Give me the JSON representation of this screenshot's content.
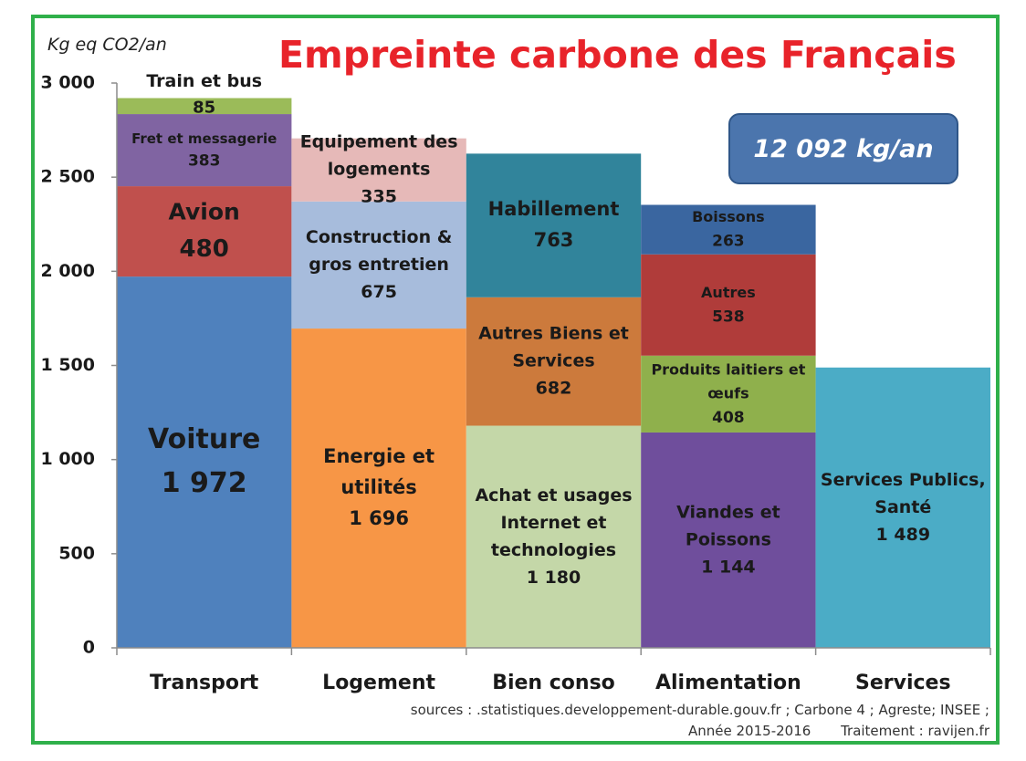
{
  "title": "Empreinte carbone des Français",
  "unit_label": "Kg eq CO2/an",
  "total": "12 092 kg/an",
  "sources": {
    "line1": "sources : .statistiques.developpement-durable.gouv.fr ; Carbone 4 ; Agreste;  INSEE ;",
    "year": "Année 2015-2016",
    "treatment": "Traitement : ravijen.fr"
  },
  "colors": {
    "frame": "#2fb04a",
    "title": "#e8232a",
    "total_box": "#4b75ad"
  },
  "chart_data": {
    "type": "bar",
    "stacked": true,
    "ylabel": "Kg eq CO2/an",
    "ylim": [
      0,
      3000
    ],
    "yticks": [
      0,
      500,
      1000,
      1500,
      2000,
      2500,
      3000
    ],
    "ytick_labels": [
      "0",
      "500",
      "1 000",
      "1 500",
      "2 000",
      "2 500",
      "3 000"
    ],
    "grid": false,
    "categories": [
      "Transport",
      "Logement",
      "Bien conso",
      "Alimentation",
      "Services"
    ],
    "stacks": [
      {
        "category": "Transport",
        "segments": [
          {
            "label": [
              "Voiture"
            ],
            "value": 1972,
            "value_label": "1 972",
            "color": "#4f81bd",
            "label_size": 30,
            "value_size": 30
          },
          {
            "label": [
              "Avion"
            ],
            "value": 480,
            "value_label": "480",
            "color": "#c0504d",
            "label_size": 25,
            "value_size": 26
          },
          {
            "label": [
              "Fret et messagerie"
            ],
            "value": 383,
            "value_label": "383",
            "color": "#8064a2",
            "label_size": 15,
            "value_size": 17
          },
          {
            "label": [
              "Train et bus"
            ],
            "value": 85,
            "value_label": "85",
            "color": "#9bbb59",
            "label_size": 19,
            "value_size": 18,
            "label_above": true
          }
        ]
      },
      {
        "category": "Logement",
        "segments": [
          {
            "label": [
              "Energie et",
              "utilités"
            ],
            "value": 1696,
            "value_label": "1 696",
            "color": "#f79646",
            "label_size": 21,
            "value_size": 21
          },
          {
            "label": [
              "Construction &",
              "gros entretien"
            ],
            "value": 675,
            "value_label": "675",
            "color": "#a7bcdc",
            "label_size": 19,
            "value_size": 19
          },
          {
            "label": [
              "Equipement des",
              "logements"
            ],
            "value": 335,
            "value_label": "335",
            "color": "#e6b9b8",
            "label_size": 19,
            "value_size": 19
          }
        ]
      },
      {
        "category": "Bien conso",
        "segments": [
          {
            "label": [
              "Achat et usages",
              "Internet et",
              "technologies"
            ],
            "value": 1180,
            "value_label": "1 180",
            "color": "#c4d7a8",
            "label_size": 19,
            "value_size": 19
          },
          {
            "label": [
              "Autres Biens et",
              "Services"
            ],
            "value": 682,
            "value_label": "682",
            "color": "#cc7a3c",
            "label_size": 19,
            "value_size": 19
          },
          {
            "label": [
              "Habillement"
            ],
            "value": 763,
            "value_label": "763",
            "color": "#31849b",
            "label_size": 21,
            "value_size": 21
          }
        ]
      },
      {
        "category": "Alimentation",
        "segments": [
          {
            "label": [
              "Viandes et",
              "Poissons"
            ],
            "value": 1144,
            "value_label": "1 144",
            "color": "#6f4e9c",
            "label_size": 19,
            "value_size": 19
          },
          {
            "label": [
              "Produits laitiers et",
              "œufs"
            ],
            "value": 408,
            "value_label": "408",
            "color": "#8fb04c",
            "label_size": 16,
            "value_size": 17
          },
          {
            "label": [
              "Autres"
            ],
            "value": 538,
            "value_label": "538",
            "color": "#b03c3a",
            "label_size": 16,
            "value_size": 17
          },
          {
            "label": [
              "Boissons"
            ],
            "value": 263,
            "value_label": "263",
            "color": "#3a66a0",
            "label_size": 16,
            "value_size": 17
          }
        ]
      },
      {
        "category": "Services",
        "segments": [
          {
            "label": [
              "Services Publics,",
              "Santé"
            ],
            "value": 1489,
            "value_label": "1 489",
            "color": "#4bacc6",
            "label_size": 19,
            "value_size": 19
          }
        ]
      }
    ]
  }
}
